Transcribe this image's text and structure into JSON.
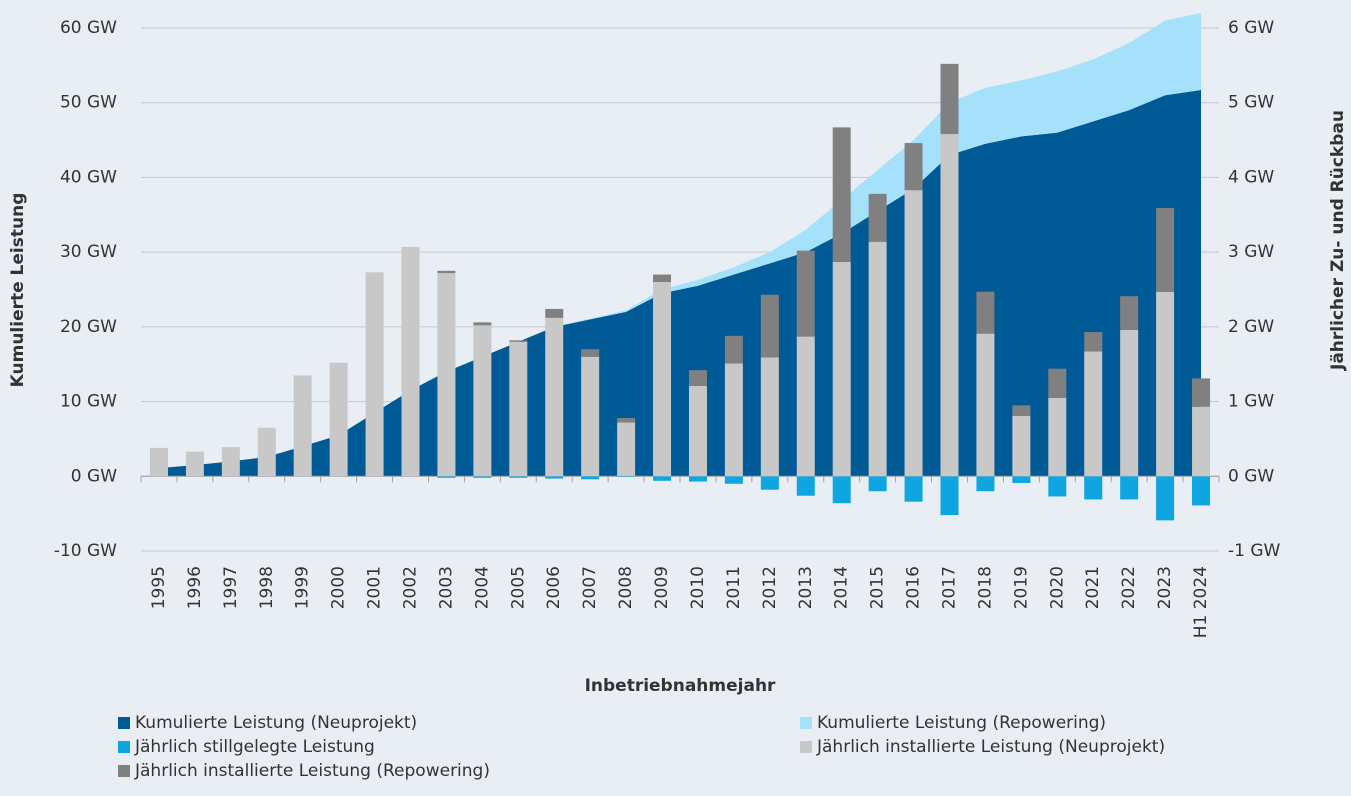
{
  "chart_data": {
    "type": "combo",
    "x_label": "Inbetriebnahmejahr",
    "y_label": "Kumulierte Leistung",
    "y2_label": "Jährlicher Zu- und Rückbau",
    "categories": [
      "1995",
      "1996",
      "1997",
      "1998",
      "1999",
      "2000",
      "2001",
      "2002",
      "2003",
      "2004",
      "2005",
      "2006",
      "2007",
      "2008",
      "2009",
      "2010",
      "2011",
      "2012",
      "2013",
      "2014",
      "2015",
      "2016",
      "2017",
      "2018",
      "2019",
      "2020",
      "2021",
      "2022",
      "2023",
      "H1 2024"
    ],
    "ylim": [
      -10,
      60
    ],
    "yticks": [
      {
        "value": -10,
        "label": "-10 GW"
      },
      {
        "value": 0,
        "label": "0 GW"
      },
      {
        "value": 10,
        "label": "10 GW"
      },
      {
        "value": 20,
        "label": "20 GW"
      },
      {
        "value": 30,
        "label": "30 GW"
      },
      {
        "value": 40,
        "label": "40 GW"
      },
      {
        "value": 50,
        "label": "50 GW"
      },
      {
        "value": 60,
        "label": "60 GW"
      }
    ],
    "y2lim": [
      -1,
      6
    ],
    "y2ticks": [
      {
        "value": -1,
        "label": "-1 GW"
      },
      {
        "value": 0,
        "label": "0 GW"
      },
      {
        "value": 1,
        "label": "1 GW"
      },
      {
        "value": 2,
        "label": "2 GW"
      },
      {
        "value": 3,
        "label": "3 GW"
      },
      {
        "value": 4,
        "label": "4 GW"
      },
      {
        "value": 5,
        "label": "5 GW"
      },
      {
        "value": 6,
        "label": "6 GW"
      }
    ],
    "grid": true,
    "series": [
      {
        "name": "Kumulierte Leistung (Neuprojekt)",
        "type": "area",
        "color": "#005a96",
        "values": [
          1.1,
          1.5,
          2.0,
          2.6,
          4.0,
          5.5,
          8.5,
          11.5,
          14.0,
          16.0,
          18.0,
          20.0,
          21.0,
          22.0,
          24.5,
          25.5,
          27.0,
          28.5,
          30.0,
          32.5,
          35.5,
          38.5,
          43.0,
          44.5,
          45.5,
          46.0,
          47.5,
          49.0,
          51.0,
          51.7
        ]
      },
      {
        "name": "Kumulierte Leistung (Repowering)",
        "type": "area",
        "color": "#a6e1fb",
        "values": [
          0,
          0,
          0,
          0,
          0,
          0,
          0,
          0,
          0,
          0,
          0,
          0,
          0.1,
          0.2,
          0.5,
          0.8,
          1.0,
          1.5,
          3.0,
          4.5,
          5.5,
          6.5,
          7.0,
          7.5,
          7.5,
          8.2,
          8.3,
          9.0,
          10.0,
          10.3
        ]
      },
      {
        "name": "Jährlich stillgelegte Leistung",
        "type": "bar",
        "axis": "y2",
        "color": "#0ea5e0",
        "values": [
          0,
          0,
          0,
          0,
          0,
          0,
          0,
          0,
          -0.02,
          -0.02,
          -0.02,
          -0.03,
          -0.04,
          -0.01,
          -0.06,
          -0.07,
          -0.1,
          -0.18,
          -0.26,
          -0.36,
          -0.2,
          -0.34,
          -0.52,
          -0.2,
          -0.09,
          -0.27,
          -0.31,
          -0.31,
          -0.59,
          -0.39
        ]
      },
      {
        "name": "Jährlich installierte Leistung (Neuprojekt)",
        "type": "bar",
        "axis": "y2",
        "color": "#c8c8c8",
        "values": [
          0.38,
          0.33,
          0.39,
          0.65,
          1.35,
          1.52,
          2.73,
          3.07,
          2.72,
          2.02,
          1.8,
          2.12,
          1.6,
          0.72,
          2.6,
          1.21,
          1.51,
          1.59,
          1.87,
          2.87,
          3.14,
          3.83,
          4.58,
          1.91,
          0.81,
          1.05,
          1.67,
          1.96,
          2.47,
          0.93
        ]
      },
      {
        "name": "Jährlich installierte Leistung (Repowering)",
        "type": "bar",
        "axis": "y2",
        "color": "#808080",
        "values": [
          0,
          0,
          0,
          0,
          0,
          0,
          0,
          0,
          0.03,
          0.04,
          0.02,
          0.12,
          0.1,
          0.06,
          0.1,
          0.21,
          0.37,
          0.84,
          1.15,
          1.8,
          0.64,
          0.63,
          0.94,
          0.56,
          0.14,
          0.39,
          0.26,
          0.45,
          1.12,
          0.38
        ]
      }
    ]
  }
}
